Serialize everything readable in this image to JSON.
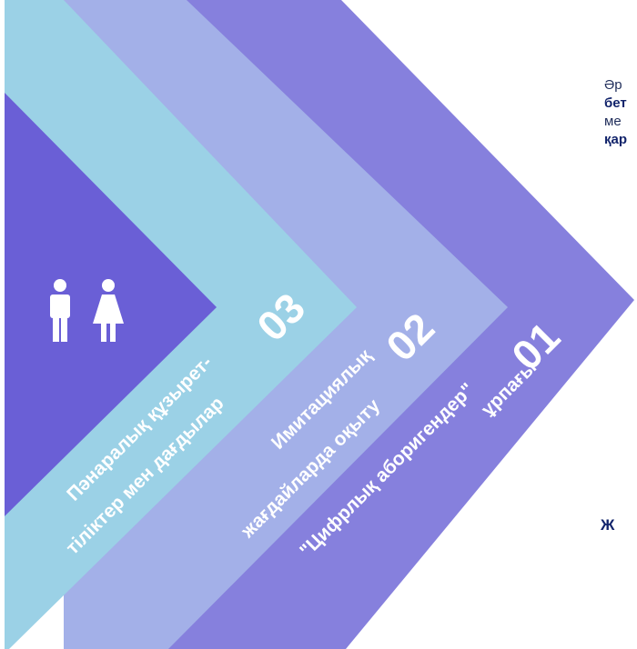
{
  "side_text": {
    "line1": "Әр",
    "line2": "бет",
    "line3": "ме",
    "line4": "қар",
    "bottom": "Ж"
  },
  "chevrons": [
    {
      "number": "01",
      "label_line1": "\"Цифрлық аборигендер\"",
      "label_line2": "ұрпағы"
    },
    {
      "number": "02",
      "label_line1": "Имитациялық",
      "label_line2": "жағдайларда оқыту"
    },
    {
      "number": "03",
      "label_line1": "Пәнаралық құзырет-",
      "label_line2": "тіліктер мен дағдылар"
    }
  ],
  "colors": {
    "band1": "#8680dd",
    "band2": "#a3b0e8",
    "band3": "#9bd1e6",
    "core": "#6a5fd6",
    "text_dark": "#12246b"
  },
  "icons": [
    "male-person-icon",
    "female-person-icon"
  ]
}
